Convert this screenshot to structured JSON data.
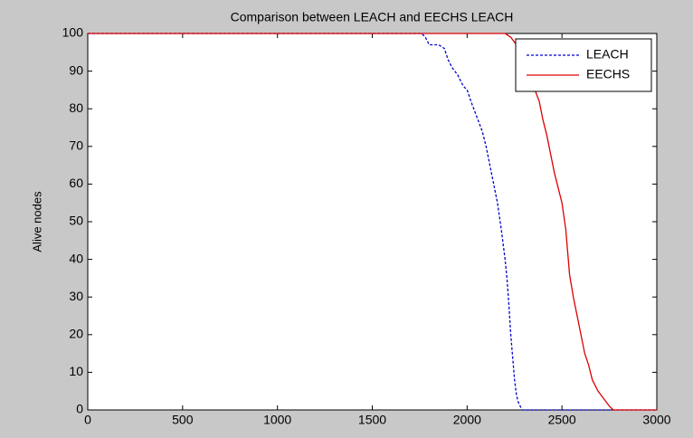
{
  "chart_data": {
    "type": "line",
    "title": "Comparison between LEACH and EECHS LEACH",
    "ylabel": "Alive nodes",
    "xlim": [
      0,
      3000
    ],
    "ylim": [
      0,
      100
    ],
    "xticks": [
      0,
      500,
      1000,
      1500,
      2000,
      2500,
      3000
    ],
    "yticks": [
      0,
      10,
      20,
      30,
      40,
      50,
      60,
      70,
      80,
      90,
      100
    ],
    "legend": "top-right",
    "series": [
      {
        "name": "LEACH",
        "color": "#0000cc",
        "dash": true,
        "x": [
          0,
          1760,
          1780,
          1800,
          1850,
          1880,
          1900,
          1920,
          1950,
          1980,
          2000,
          2020,
          2050,
          2080,
          2100,
          2120,
          2140,
          2160,
          2180,
          2200,
          2210,
          2220,
          2230,
          2240,
          2250,
          2260,
          2270,
          2290,
          3000
        ],
        "values": [
          100,
          100,
          99,
          97,
          97,
          96,
          93,
          91,
          89,
          86,
          85,
          82,
          78,
          74,
          70,
          65,
          60,
          55,
          48,
          40,
          35,
          28,
          20,
          14,
          8,
          4,
          2,
          0,
          0
        ]
      },
      {
        "name": "EECHS",
        "color": "#dd0000",
        "dash": false,
        "x": [
          0,
          2200,
          2230,
          2260,
          2280,
          2300,
          2330,
          2350,
          2380,
          2400,
          2420,
          2440,
          2460,
          2480,
          2500,
          2520,
          2530,
          2540,
          2560,
          2580,
          2600,
          2620,
          2640,
          2660,
          2690,
          2720,
          2750,
          2770,
          3000
        ],
        "values": [
          100,
          100,
          99,
          97,
          95,
          92,
          89,
          86,
          82,
          77,
          73,
          68,
          63,
          59,
          55,
          48,
          42,
          36,
          30,
          25,
          20,
          15,
          12,
          8,
          5,
          3,
          1,
          0,
          0
        ]
      }
    ]
  }
}
